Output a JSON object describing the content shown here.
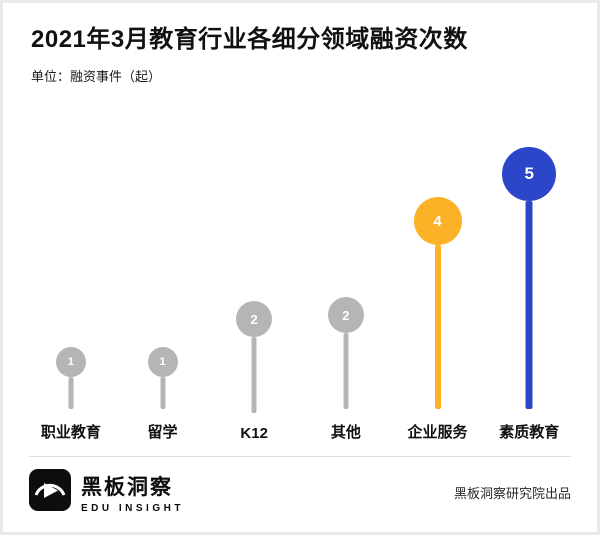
{
  "header": {
    "title": "2021年3月教育行业各细分领域融资次数",
    "subtitle": "单位：融资事件（起）"
  },
  "chart_data": {
    "type": "bar",
    "variant": "lollipop",
    "title": "2021年3月教育行业各细分领域融资次数",
    "unit_label": "单位：融资事件（起）",
    "categories": [
      "职业教育",
      "留学",
      "K12",
      "其他",
      "企业服务",
      "素质教育"
    ],
    "values": [
      1,
      1,
      2,
      2,
      4,
      5
    ],
    "colors": [
      "#b5b5b5",
      "#b5b5b5",
      "#b5b5b5",
      "#b5b5b5",
      "#fbb226",
      "#2b46c8"
    ],
    "value_labels_shown": true,
    "xlabel": "",
    "ylabel": "",
    "ylim": [
      0,
      5.5
    ],
    "grid": false,
    "legend": "none"
  },
  "footer": {
    "brand_name": "黑板洞察",
    "brand_subtitle": "EDU INSIGHT",
    "credit": "黑板洞察研究院出品"
  }
}
